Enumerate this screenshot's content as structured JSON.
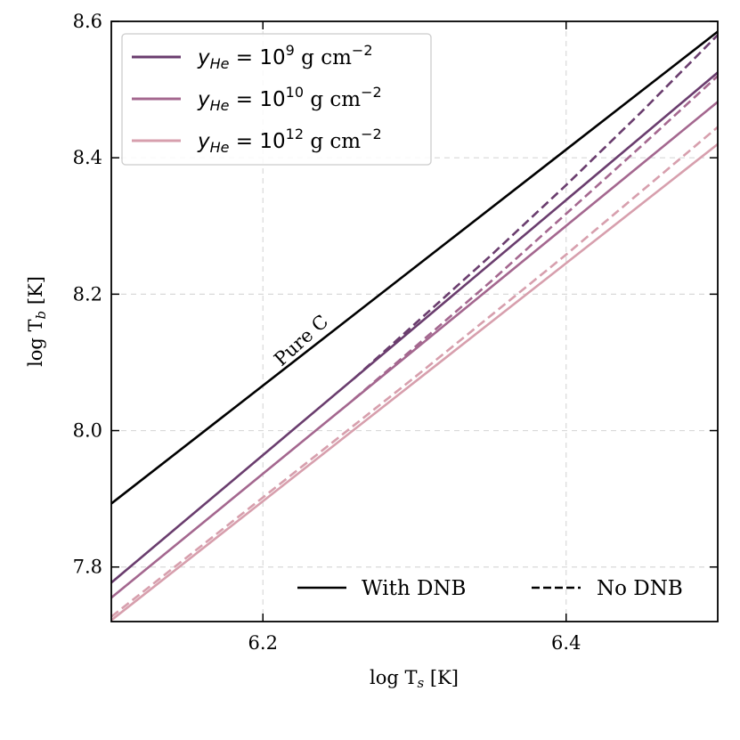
{
  "chart_data": {
    "type": "line",
    "xlabel_main": "log T",
    "xlabel_sub": "s",
    "xlabel_unit": " [K]",
    "ylabel_main": "log T",
    "ylabel_sub": "b",
    "ylabel_unit": " [K]",
    "xlim": [
      6.1,
      6.5
    ],
    "ylim": [
      7.72,
      8.6
    ],
    "xticks": [
      6.2,
      6.4
    ],
    "xtick_labels": [
      "6.2",
      "6.4"
    ],
    "yticks": [
      7.8,
      8.0,
      8.2,
      8.4,
      8.6
    ],
    "ytick_labels": [
      "7.8",
      "8.0",
      "8.2",
      "8.4",
      "8.6"
    ],
    "grid": true,
    "annotation": "Pure C",
    "series": [
      {
        "name": "Pure C",
        "color": "#000000",
        "dash": false,
        "x": [
          6.1,
          6.5
        ],
        "y": [
          7.893,
          8.585
        ]
      },
      {
        "name": "yHe = 1e9 with DNB",
        "color": "#6a3d6e",
        "dash": false,
        "x": [
          6.1,
          6.5
        ],
        "y": [
          7.777,
          8.525
        ]
      },
      {
        "name": "yHe = 1e9 no DNB",
        "color": "#6a3d6e",
        "dash": true,
        "x": [
          6.26,
          6.3,
          6.35,
          6.4,
          6.45,
          6.5
        ],
        "y": [
          8.076,
          8.156,
          8.256,
          8.36,
          8.468,
          8.58
        ]
      },
      {
        "name": "yHe = 1e10 with DNB",
        "color": "#a4678f",
        "dash": false,
        "x": [
          6.1,
          6.5
        ],
        "y": [
          7.755,
          8.482
        ]
      },
      {
        "name": "yHe = 1e10 no DNB",
        "color": "#a4678f",
        "dash": true,
        "x": [
          6.26,
          6.3,
          6.35,
          6.4,
          6.45,
          6.5
        ],
        "y": [
          8.046,
          8.122,
          8.218,
          8.318,
          8.418,
          8.52
        ]
      },
      {
        "name": "yHe = 1e12 with DNB",
        "color": "#d79fad",
        "dash": false,
        "x": [
          6.1,
          6.5
        ],
        "y": [
          7.722,
          8.42
        ]
      },
      {
        "name": "yHe = 1e12 no DNB",
        "color": "#d79fad",
        "dash": true,
        "x": [
          6.1,
          6.2,
          6.3,
          6.4,
          6.5
        ],
        "y": [
          7.727,
          7.902,
          8.078,
          8.258,
          8.445
        ]
      }
    ],
    "legend_upper": {
      "position": "top-left",
      "entries": [
        {
          "color": "#6a3d6e",
          "math": "y",
          "sub": "He",
          "eq": " = 10",
          "sup": "9",
          "unit": " g cm",
          "unit_sup": "−2"
        },
        {
          "color": "#a4678f",
          "math": "y",
          "sub": "He",
          "eq": " = 10",
          "sup": "10",
          "unit": " g cm",
          "unit_sup": "−2"
        },
        {
          "color": "#d79fad",
          "math": "y",
          "sub": "He",
          "eq": " = 10",
          "sup": "12",
          "unit": " g cm",
          "unit_sup": "−2"
        }
      ]
    },
    "legend_lower": {
      "position": "bottom-right",
      "entries": [
        {
          "label": "With DNB",
          "dash": false,
          "color": "#000000"
        },
        {
          "label": "No DNB",
          "dash": true,
          "color": "#000000"
        }
      ]
    }
  }
}
